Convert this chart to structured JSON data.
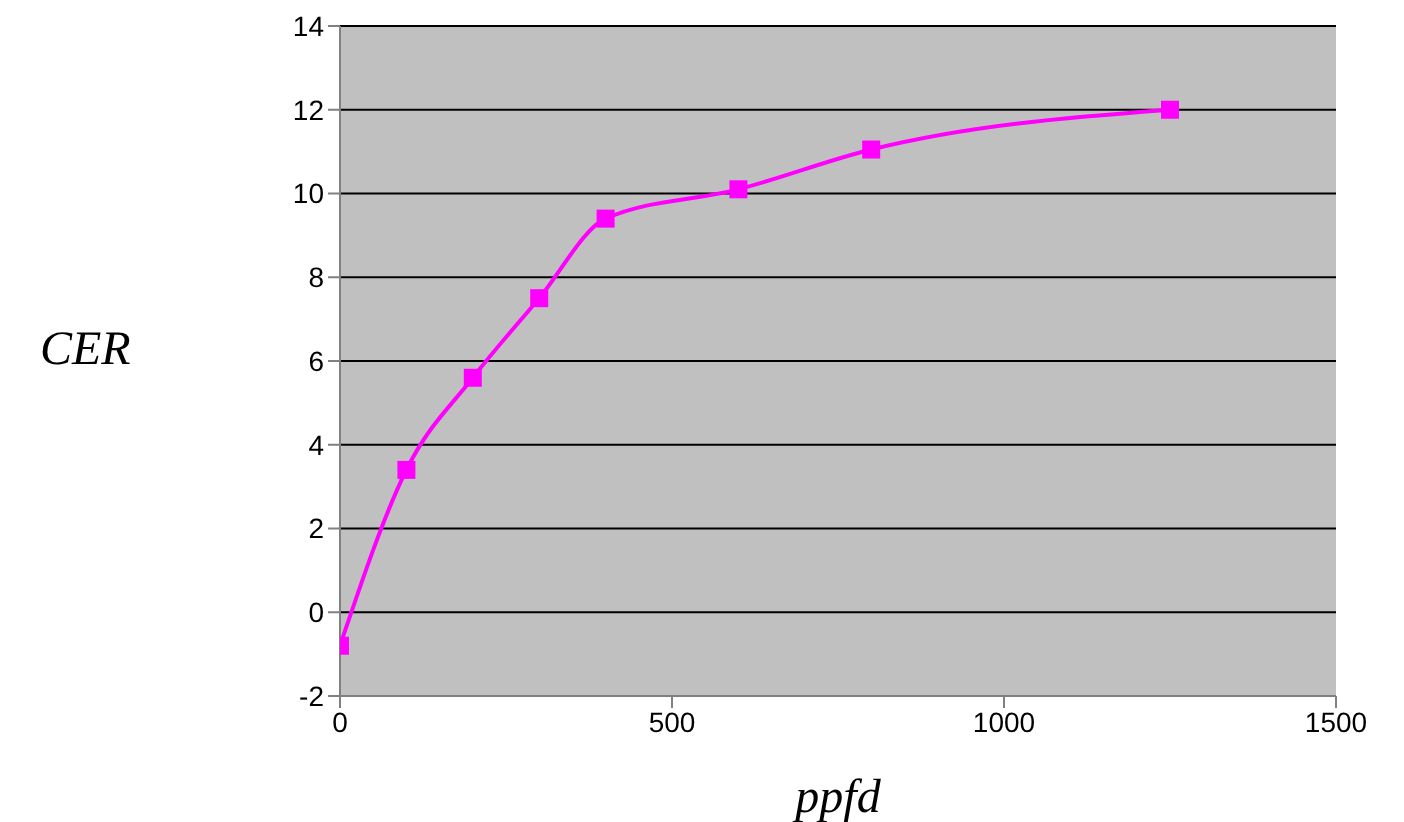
{
  "chart_data": {
    "type": "line",
    "xlabel": "ppfd",
    "ylabel": "CER",
    "x": [
      0,
      100,
      200,
      300,
      400,
      600,
      800,
      1250
    ],
    "series": [
      {
        "color": "#ff00ff",
        "values": [
          -0.8,
          3.4,
          5.6,
          7.5,
          9.4,
          10.1,
          11.05,
          12.0
        ]
      }
    ],
    "xlim": [
      0,
      1500
    ],
    "xticks": [
      0,
      500,
      1000,
      1500
    ],
    "ylim": [
      -2,
      14
    ],
    "yticks": [
      -2,
      0,
      2,
      4,
      6,
      8,
      10,
      12,
      14
    ],
    "grid": "y",
    "marker": "square",
    "line_style": "solid"
  }
}
